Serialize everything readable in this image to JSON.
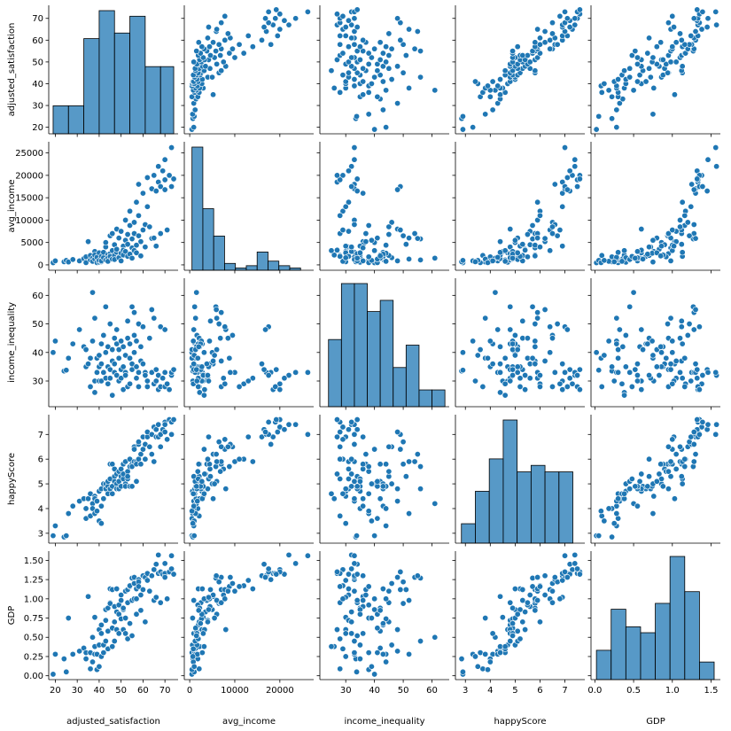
{
  "chart_data": {
    "type": "pairplot",
    "variables": [
      "adjusted_satisfaction",
      "avg_income",
      "income_inequality",
      "happyScore",
      "GDP"
    ],
    "color": "#1f77b4",
    "axes": {
      "adjusted_satisfaction": {
        "range": [
          17,
          76
        ],
        "ticks": [
          20,
          30,
          40,
          50,
          60,
          70
        ]
      },
      "avg_income": {
        "range": [
          -1200,
          27500
        ],
        "ticks": [
          0,
          5000,
          10000,
          15000,
          20000,
          25000
        ],
        "x_ticks": [
          0,
          10000,
          20000
        ]
      },
      "income_inequality": {
        "range": [
          21,
          66
        ],
        "ticks": [
          30,
          40,
          50,
          60
        ]
      },
      "happyScore": {
        "range": [
          2.6,
          7.8
        ],
        "ticks": [
          3,
          4,
          5,
          6,
          7
        ]
      },
      "GDP": {
        "range": [
          -0.05,
          1.62
        ],
        "ticks": [
          0.0,
          0.25,
          0.5,
          0.75,
          1.0,
          1.25,
          1.5
        ],
        "x_ticks": [
          0.0,
          0.5,
          1.0,
          1.5
        ]
      }
    },
    "histograms": {
      "adjusted_satisfaction": {
        "bin_edges": [
          19,
          26,
          33,
          40,
          47,
          54,
          61,
          68,
          74
        ],
        "counts": [
          5,
          5,
          17,
          22,
          18,
          21,
          12,
          12
        ]
      },
      "avg_income": {
        "bin_edges": [
          500,
          2910,
          5320,
          7730,
          10140,
          12550,
          14960,
          17370,
          19780,
          22190,
          24600,
          27000
        ],
        "counts": [
          54,
          27,
          15,
          3,
          1,
          2,
          8,
          4,
          2,
          1,
          0
        ]
      },
      "income_inequality": {
        "bin_edges": [
          24,
          28.5,
          33,
          37.5,
          42,
          46.5,
          51,
          55.5,
          60,
          64.5
        ],
        "counts": [
          12,
          22,
          22,
          17,
          19,
          7,
          11,
          3,
          3
        ]
      },
      "happyScore": {
        "bin_edges": [
          2.84,
          3.4,
          3.96,
          4.52,
          5.08,
          5.64,
          6.2,
          6.76,
          7.32,
          7.6
        ],
        "counts": [
          3,
          8,
          13,
          19,
          11,
          12,
          11,
          11,
          0
        ]
      },
      "GDP": {
        "bin_edges": [
          0.02,
          0.21,
          0.4,
          0.59,
          0.78,
          0.97,
          1.16,
          1.35,
          1.54
        ],
        "counts": [
          5,
          12,
          9,
          8,
          13,
          21,
          15,
          3
        ]
      }
    },
    "records": [
      [
        19,
        480,
        40.0,
        2.9,
        0.02
      ],
      [
        20,
        900,
        44.0,
        3.3,
        0.28
      ],
      [
        24,
        700,
        33.5,
        2.85,
        0.22
      ],
      [
        25,
        1000,
        33.8,
        2.9,
        0.05
      ],
      [
        26,
        650,
        38.0,
        3.8,
        0.75
      ],
      [
        28,
        1200,
        43.0,
        4.1,
        0.28
      ],
      [
        31,
        900,
        48.0,
        4.3,
        0.32
      ],
      [
        33,
        1400,
        42.0,
        4.4,
        0.36
      ],
      [
        34,
        1800,
        35.0,
        4.0,
        0.22
      ],
      [
        34,
        500,
        41.0,
        3.6,
        0.3
      ],
      [
        35,
        5200,
        36.0,
        4.4,
        1.03
      ],
      [
        36,
        1100,
        38.0,
        4.6,
        0.3
      ],
      [
        36,
        2100,
        28.0,
        3.7,
        0.09
      ],
      [
        37,
        1500,
        61.0,
        4.2,
        0.5
      ],
      [
        37,
        800,
        44.0,
        4.0,
        0.18
      ],
      [
        38,
        3000,
        30.0,
        4.5,
        0.76
      ],
      [
        38,
        1300,
        52.0,
        3.8,
        0.28
      ],
      [
        38,
        2200,
        26.0,
        4.4,
        0.38
      ],
      [
        39,
        1700,
        33.0,
        4.3,
        0.28
      ],
      [
        39,
        500,
        38.0,
        3.9,
        0.08
      ],
      [
        40,
        600,
        35.0,
        4.7,
        0.4
      ],
      [
        40,
        2700,
        30.0,
        4.7,
        0.6
      ],
      [
        40,
        1000,
        39.0,
        3.5,
        0.12
      ],
      [
        41,
        700,
        30.0,
        3.4,
        0.25
      ],
      [
        41,
        1900,
        43.0,
        4.8,
        0.66
      ],
      [
        41,
        900,
        36.0,
        4.1,
        0.55
      ],
      [
        42,
        1600,
        46.0,
        5.0,
        0.4
      ],
      [
        42,
        2800,
        33.0,
        4.4,
        0.3
      ],
      [
        43,
        4000,
        31.0,
        4.8,
        0.72
      ],
      [
        43,
        1100,
        56.0,
        4.8,
        0.45
      ],
      [
        43,
        5000,
        40.0,
        5.0,
        0.86
      ],
      [
        44,
        2300,
        35.0,
        4.9,
        0.88
      ],
      [
        44,
        1500,
        42.0,
        5.1,
        0.58
      ],
      [
        44,
        800,
        29.0,
        4.6,
        0.35
      ],
      [
        45,
        2500,
        34.0,
        4.8,
        0.95
      ],
      [
        45,
        6500,
        50.0,
        5.8,
        0.94
      ],
      [
        45,
        1900,
        31.0,
        5.2,
        1.13
      ],
      [
        46,
        7000,
        37.0,
        5.8,
        1.12
      ],
      [
        46,
        1300,
        41.0,
        4.9,
        0.62
      ],
      [
        46,
        3200,
        25.0,
        4.6,
        0.38
      ],
      [
        47,
        2100,
        45.0,
        5.3,
        0.7
      ],
      [
        47,
        1200,
        33.0,
        5.1,
        0.45
      ],
      [
        47,
        4500,
        36.0,
        5.6,
        0.9
      ],
      [
        48,
        2800,
        43.0,
        5.0,
        1.13
      ],
      [
        48,
        3500,
        32.0,
        5.4,
        0.83
      ],
      [
        48,
        8000,
        48.0,
        4.8,
        0.6
      ],
      [
        49,
        1800,
        38.0,
        5.5,
        0.92
      ],
      [
        49,
        6000,
        41.0,
        5.1,
        0.8
      ],
      [
        49,
        1600,
        30.0,
        4.8,
        0.55
      ],
      [
        50,
        900,
        34.0,
        5.3,
        0.98
      ],
      [
        50,
        2600,
        44.0,
        4.9,
        0.74
      ],
      [
        50,
        7500,
        31.0,
        5.6,
        1.05
      ],
      [
        51,
        4200,
        35.0,
        5.2,
        0.86
      ],
      [
        51,
        3300,
        27.0,
        5.4,
        0.6
      ],
      [
        51,
        2200,
        42.0,
        5.8,
        0.88
      ],
      [
        52,
        5500,
        39.0,
        5.0,
        0.75
      ],
      [
        52,
        10000,
        33.0,
        5.9,
        1.1
      ],
      [
        52,
        3000,
        32.0,
        4.9,
        0.55
      ],
      [
        53,
        1900,
        28.0,
        5.2,
        0.48
      ],
      [
        53,
        6800,
        45.0,
        5.5,
        0.95
      ],
      [
        53,
        4600,
        51.0,
        5.3,
        1.12
      ],
      [
        54,
        8800,
        38.0,
        5.7,
        1.16
      ],
      [
        54,
        2400,
        43.0,
        4.9,
        0.68
      ],
      [
        54,
        12000,
        29.0,
        6.0,
        1.17
      ],
      [
        55,
        3800,
        36.0,
        5.8,
        0.98
      ],
      [
        55,
        5800,
        56.0,
        5.7,
        1.27
      ],
      [
        55,
        1500,
        34.0,
        4.9,
        0.52
      ],
      [
        56,
        9500,
        46.0,
        6.5,
        1.2
      ],
      [
        56,
        3200,
        40.0,
        6.4,
        1.0
      ],
      [
        56,
        7000,
        54.0,
        5.9,
        1.28
      ],
      [
        57,
        14000,
        31.0,
        5.9,
        1.13
      ],
      [
        57,
        4400,
        44.0,
        5.8,
        1.0
      ],
      [
        57,
        2700,
        35.0,
        5.1,
        0.8
      ],
      [
        58,
        18000,
        33.0,
        6.6,
        1.25
      ],
      [
        58,
        6500,
        50.0,
        6.7,
        1.22
      ],
      [
        58,
        11000,
        28.0,
        6.0,
        1.16
      ],
      [
        59,
        5200,
        37.0,
        6.2,
        1.05
      ],
      [
        59,
        2000,
        42.0,
        5.8,
        0.85
      ],
      [
        60,
        16000,
        36.0,
        6.9,
        1.3
      ],
      [
        60,
        7800,
        49.0,
        6.4,
        1.12
      ],
      [
        61,
        9000,
        33.0,
        6.6,
        1.28
      ],
      [
        61,
        4000,
        32.0,
        6.0,
        0.7
      ],
      [
        62,
        13000,
        30.0,
        6.9,
        1.24
      ],
      [
        62,
        19500,
        28.0,
        7.1,
        1.33
      ],
      [
        63,
        8500,
        45.0,
        6.5,
        1.1
      ],
      [
        64,
        17000,
        33.0,
        7.0,
        1.3
      ],
      [
        64,
        5900,
        55.0,
        6.2,
        1.3
      ],
      [
        65,
        20000,
        29.0,
        7.3,
        1.38
      ],
      [
        65,
        6000,
        52.0,
        5.9,
        0.98
      ],
      [
        66,
        16500,
        34.0,
        7.2,
        1.45
      ],
      [
        66,
        4200,
        30.0,
        6.9,
        1.02
      ],
      [
        67,
        18500,
        27.0,
        6.9,
        1.33
      ],
      [
        67,
        22000,
        32.0,
        7.4,
        1.57
      ],
      [
        68,
        17500,
        49.0,
        7.0,
        1.35
      ],
      [
        68,
        7000,
        28.0,
        6.5,
        0.95
      ],
      [
        69,
        21000,
        31.0,
        7.2,
        1.32
      ],
      [
        70,
        19000,
        28.0,
        7.5,
        1.33
      ],
      [
        70,
        23500,
        33.0,
        7.4,
        1.46
      ],
      [
        70,
        16800,
        48.0,
        7.1,
        1.28
      ],
      [
        71,
        7800,
        29.0,
        6.8,
        1.0
      ],
      [
        72,
        20000,
        27.0,
        7.6,
        1.35
      ],
      [
        73,
        17500,
        32.0,
        7.5,
        1.39
      ],
      [
        73,
        26200,
        33.0,
        7.0,
        1.56
      ],
      [
        74,
        19200,
        34.0,
        7.6,
        1.32
      ]
    ]
  }
}
